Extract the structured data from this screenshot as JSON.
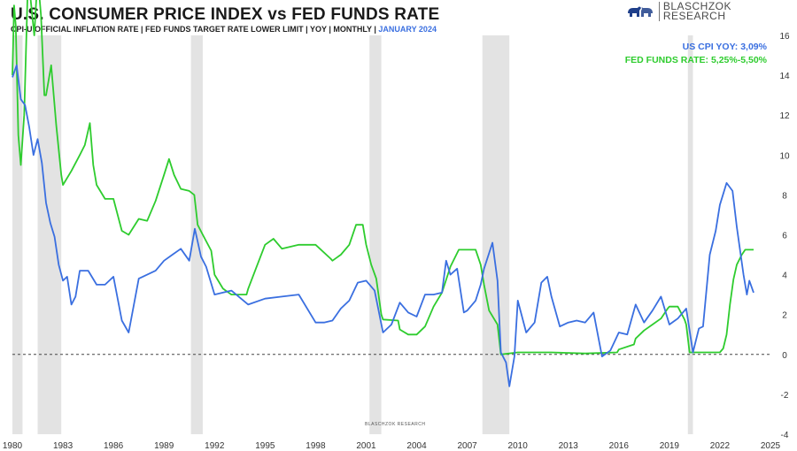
{
  "header": {
    "title": "U.S. CONSUMER PRICE INDEX vs FED FUNDS RATE",
    "subtitle_main": "CPI-U OFFICIAL INFLATION RATE | FED FUNDS TARGET RATE LOWER LIMIT | YOY | MONTHLY |",
    "subtitle_date": "JANUARY 2024"
  },
  "brand": {
    "line1": "BLASCHZOK",
    "line2": "RESEARCH"
  },
  "watermark": "BLASCHZOK    RESEARCH",
  "legend": {
    "cpi": "US CPI YOY: 3,09%",
    "fed": "FED FUNDS RATE: 5,25%-5,50%"
  },
  "colors": {
    "cpi": "#3a6fe0",
    "fed": "#2ecc2e",
    "recession": "#e3e3e3",
    "zero_line": "#444444"
  },
  "chart_data": {
    "type": "line",
    "title": "U.S. CONSUMER PRICE INDEX vs FED FUNDS RATE",
    "xlim": [
      1980,
      2025
    ],
    "ylim": [
      -4,
      16
    ],
    "x_ticks": [
      1980,
      1983,
      1986,
      1989,
      1992,
      1995,
      1998,
      2001,
      2004,
      2007,
      2010,
      2013,
      2016,
      2019,
      2022,
      2025
    ],
    "y_ticks": [
      -4,
      -2,
      0,
      2,
      4,
      6,
      8,
      10,
      12,
      14,
      16
    ],
    "recessions": [
      [
        1980.0,
        1980.6
      ],
      [
        1981.5,
        1982.9
      ],
      [
        1990.6,
        1991.3
      ],
      [
        2001.2,
        2001.9
      ],
      [
        2007.9,
        2009.5
      ],
      [
        2020.1,
        2020.4
      ]
    ],
    "series": [
      {
        "name": "US CPI YOY",
        "x": [
          1980.0,
          1980.25,
          1980.5,
          1980.75,
          1981.0,
          1981.25,
          1981.5,
          1981.75,
          1982.0,
          1982.25,
          1982.5,
          1982.75,
          1983.0,
          1983.25,
          1983.5,
          1983.75,
          1984.0,
          1984.5,
          1985.0,
          1985.5,
          1986.0,
          1986.5,
          1986.9,
          1987.5,
          1988.0,
          1988.5,
          1989.0,
          1989.5,
          1990.0,
          1990.5,
          1990.83,
          1991.2,
          1991.5,
          1992.0,
          1993.0,
          1994.0,
          1995.0,
          1996.0,
          1997.0,
          1998.0,
          1998.5,
          1999.0,
          1999.5,
          2000.0,
          2000.5,
          2001.0,
          2001.5,
          2002.0,
          2002.5,
          2003.0,
          2003.5,
          2004.0,
          2004.5,
          2005.0,
          2005.5,
          2005.75,
          2006.0,
          2006.4,
          2006.8,
          2007.0,
          2007.5,
          2007.8,
          2008.0,
          2008.5,
          2008.8,
          2009.0,
          2009.3,
          2009.5,
          2009.8,
          2010.0,
          2010.5,
          2011.0,
          2011.4,
          2011.75,
          2012.0,
          2012.5,
          2013.0,
          2013.5,
          2014.0,
          2014.5,
          2015.0,
          2015.5,
          2016.0,
          2016.5,
          2017.0,
          2017.5,
          2018.0,
          2018.5,
          2019.0,
          2019.5,
          2020.0,
          2020.4,
          2020.75,
          2021.0,
          2021.4,
          2021.75,
          2022.0,
          2022.4,
          2022.75,
          2023.0,
          2023.4,
          2023.6,
          2023.75,
          2024.0
        ],
        "values": [
          13.9,
          14.5,
          12.8,
          12.5,
          11.4,
          10.0,
          10.8,
          9.6,
          7.6,
          6.6,
          5.9,
          4.5,
          3.7,
          3.9,
          2.5,
          2.9,
          4.2,
          4.2,
          3.5,
          3.5,
          3.9,
          1.7,
          1.1,
          3.8,
          4.0,
          4.2,
          4.7,
          5.0,
          5.3,
          4.7,
          6.3,
          4.9,
          4.4,
          3.0,
          3.2,
          2.5,
          2.8,
          2.9,
          3.0,
          1.6,
          1.6,
          1.7,
          2.3,
          2.7,
          3.6,
          3.7,
          3.2,
          1.1,
          1.5,
          2.6,
          2.1,
          1.9,
          3.0,
          3.0,
          3.1,
          4.7,
          4.0,
          4.3,
          2.1,
          2.2,
          2.7,
          3.5,
          4.3,
          5.6,
          3.7,
          0.1,
          -0.4,
          -1.6,
          -0.1,
          2.7,
          1.1,
          1.6,
          3.6,
          3.9,
          2.9,
          1.4,
          1.6,
          1.7,
          1.6,
          2.1,
          -0.1,
          0.2,
          1.1,
          1.0,
          2.5,
          1.6,
          2.2,
          2.9,
          1.5,
          1.8,
          2.3,
          0.1,
          1.3,
          1.4,
          5.0,
          6.2,
          7.5,
          8.6,
          8.2,
          6.4,
          4.0,
          3.0,
          3.7,
          3.1
        ]
      },
      {
        "name": "FED FUNDS RATE",
        "x": [
          1980.0,
          1980.1,
          1980.2,
          1980.35,
          1980.5,
          1980.7,
          1980.9,
          1981.0,
          1981.3,
          1981.5,
          1981.7,
          1981.9,
          1982.0,
          1982.3,
          1982.6,
          1982.9,
          1983.0,
          1983.5,
          1984.0,
          1984.3,
          1984.6,
          1984.8,
          1985.0,
          1985.5,
          1986.0,
          1986.5,
          1986.9,
          1987.5,
          1988.0,
          1988.5,
          1989.0,
          1989.3,
          1989.6,
          1990.0,
          1990.5,
          1990.8,
          1991.0,
          1991.3,
          1991.8,
          1992.0,
          1992.5,
          1993.0,
          1993.9,
          1994.0,
          1994.5,
          1995.0,
          1995.5,
          1996.0,
          1997.0,
          1998.0,
          1998.9,
          1999.0,
          1999.5,
          2000.0,
          2000.4,
          2000.8,
          2001.0,
          2001.3,
          2001.6,
          2001.9,
          2002.0,
          2002.9,
          2003.0,
          2003.5,
          2004.0,
          2004.5,
          2004.9,
          2005.0,
          2005.5,
          2006.0,
          2006.5,
          2007.0,
          2007.5,
          2007.8,
          2008.0,
          2008.3,
          2008.8,
          2009.0,
          2010.0,
          2012.0,
          2014.0,
          2015.9,
          2016.0,
          2016.9,
          2017.0,
          2017.5,
          2018.0,
          2018.5,
          2018.9,
          2019.0,
          2019.5,
          2019.9,
          2020.0,
          2020.2,
          2021.0,
          2022.0,
          2022.2,
          2022.4,
          2022.6,
          2022.8,
          2023.0,
          2023.3,
          2023.5,
          2024.0
        ],
        "values": [
          14.0,
          17.5,
          16.5,
          11.0,
          9.5,
          12.0,
          18.0,
          18.5,
          16.0,
          19.0,
          17.0,
          13.0,
          13.0,
          14.5,
          11.5,
          9.0,
          8.5,
          9.2,
          10.0,
          10.5,
          11.6,
          9.5,
          8.5,
          7.8,
          7.8,
          6.2,
          6.0,
          6.8,
          6.7,
          7.7,
          9.0,
          9.8,
          9.0,
          8.3,
          8.2,
          8.0,
          6.5,
          6.0,
          5.2,
          4.0,
          3.3,
          3.0,
          3.0,
          3.3,
          4.4,
          5.5,
          5.8,
          5.3,
          5.5,
          5.5,
          4.8,
          4.7,
          5.0,
          5.5,
          6.5,
          6.5,
          5.5,
          4.5,
          3.8,
          2.0,
          1.75,
          1.7,
          1.25,
          1.0,
          1.0,
          1.4,
          2.2,
          2.4,
          3.1,
          4.4,
          5.25,
          5.25,
          5.25,
          4.5,
          3.5,
          2.2,
          1.5,
          0.0,
          0.1,
          0.1,
          0.05,
          0.1,
          0.25,
          0.5,
          0.8,
          1.2,
          1.5,
          1.8,
          2.3,
          2.4,
          2.4,
          1.75,
          1.5,
          0.1,
          0.1,
          0.1,
          0.3,
          1.0,
          2.5,
          3.75,
          4.5,
          5.0,
          5.25,
          5.25
        ]
      }
    ]
  }
}
